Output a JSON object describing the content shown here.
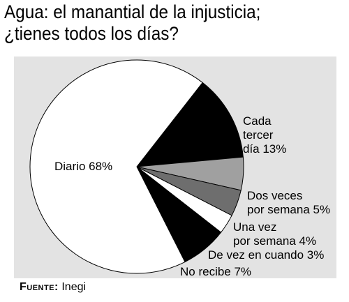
{
  "title": {
    "line1": "Agua: el manantial de la injusticia;",
    "line2": "¿tienes todos los días?"
  },
  "source": {
    "label": "Fuente:",
    "value": "Inegi"
  },
  "colors": {
    "panel": "#e3e3e3",
    "diario": "#ffffff",
    "cada_tercer_dia": "#000000",
    "dos_veces": "#a0a0a0",
    "una_vez": "#6e6e6e",
    "de_vez_en_cuando": "#ffffff",
    "no_recibe": "#000000"
  },
  "chart_data": {
    "type": "pie",
    "title": "Agua: el manantial de la injusticia; ¿tienes todos los días?",
    "slices": [
      {
        "label": "Diario 68%",
        "value": 68,
        "color": "#ffffff"
      },
      {
        "label": "Cada tercer día 13%",
        "value": 13,
        "color": "#000000"
      },
      {
        "label": "Dos veces por semana 5%",
        "value": 5,
        "color": "#a0a0a0"
      },
      {
        "label": "Una vez por semana 4%",
        "value": 4,
        "color": "#6e6e6e"
      },
      {
        "label": "De vez en cuando 3%",
        "value": 3,
        "color": "#ffffff"
      },
      {
        "label": "No recibe 7%",
        "value": 7,
        "color": "#000000"
      }
    ],
    "labels": {
      "diario": "Diario 68%",
      "cada_1": "Cada",
      "cada_2": "tercer",
      "cada_3": "día 13%",
      "dos_1": "Dos veces",
      "dos_2": "por semana 5%",
      "una_1": "Una vez",
      "una_2": "por semana 4%",
      "devez": "De vez en cuando 3%",
      "norecibe": "No recibe 7%"
    }
  }
}
